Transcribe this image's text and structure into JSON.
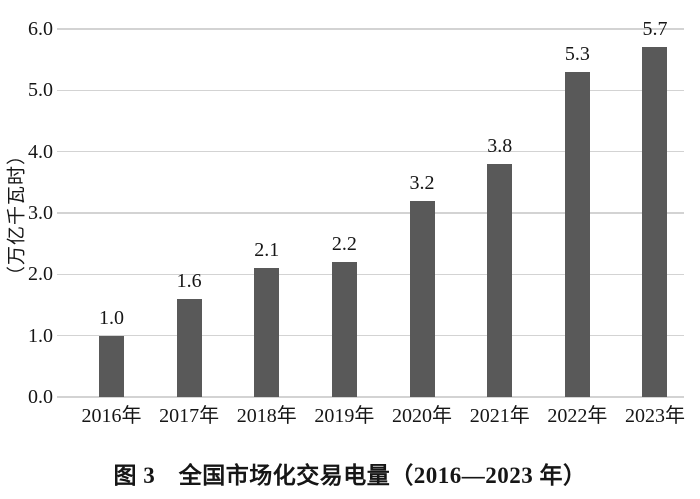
{
  "chart_data": {
    "type": "bar",
    "title": "图 3　全国市场化交易电量（2016—2023 年）",
    "ylabel": "（万亿千瓦时）",
    "xlabel": "",
    "categories": [
      "2016年",
      "2017年",
      "2018年",
      "2019年",
      "2020年",
      "2021年",
      "2022年",
      "2023年"
    ],
    "values": [
      1.0,
      1.6,
      2.1,
      2.2,
      3.2,
      3.8,
      5.3,
      5.7
    ],
    "value_labels": [
      "1.0",
      "1.6",
      "2.1",
      "2.2",
      "3.2",
      "3.8",
      "5.3",
      "5.7"
    ],
    "ylim": [
      0.0,
      6.0
    ],
    "yticks": [
      "0.0",
      "1.0",
      "2.0",
      "3.0",
      "4.0",
      "5.0",
      "6.0"
    ],
    "grid": true,
    "legend_position": "none",
    "bar_color": "#595959",
    "grid_color": "#d3d3d3",
    "text_color": "#161616",
    "background_color": "#ffffff"
  }
}
